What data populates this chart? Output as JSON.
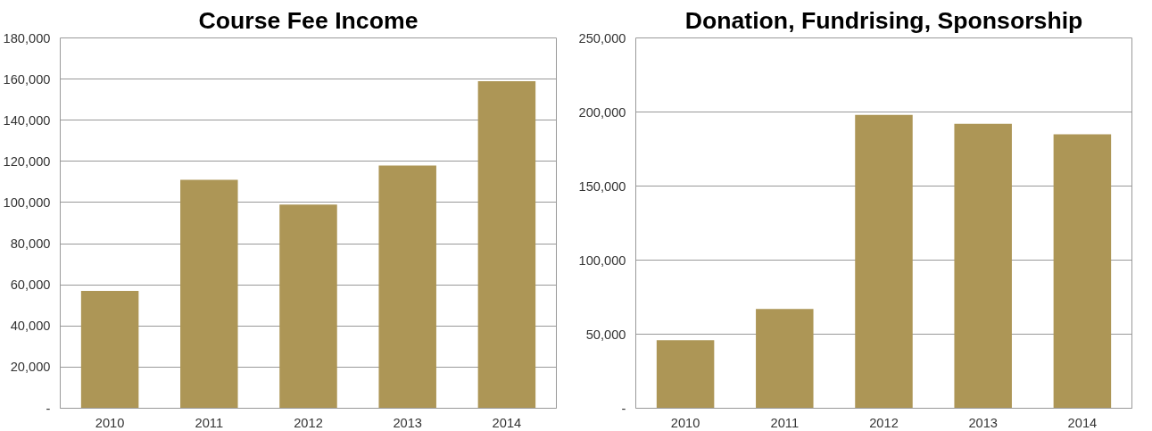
{
  "chart_data": [
    {
      "type": "bar",
      "title": "Course Fee Income",
      "categories": [
        "2010",
        "2011",
        "2012",
        "2013",
        "2014"
      ],
      "values": [
        57000,
        111000,
        99000,
        118000,
        159000
      ],
      "color": "#ad9656",
      "ylim": [
        0,
        180000
      ],
      "yticks": [
        {
          "value": 0,
          "label": "-"
        },
        {
          "value": 20000,
          "label": "20,000"
        },
        {
          "value": 40000,
          "label": "40,000"
        },
        {
          "value": 60000,
          "label": "60,000"
        },
        {
          "value": 80000,
          "label": "80,000"
        },
        {
          "value": 100000,
          "label": "100,000"
        },
        {
          "value": 120000,
          "label": "120,000"
        },
        {
          "value": 140000,
          "label": "140,000"
        },
        {
          "value": 160000,
          "label": "160,000"
        },
        {
          "value": 180000,
          "label": "180,000"
        }
      ],
      "grid": "y"
    },
    {
      "type": "bar",
      "title": "Donation, Fundrising, Sponsorship",
      "categories": [
        "2010",
        "2011",
        "2012",
        "2013",
        "2014"
      ],
      "values": [
        46000,
        67000,
        198000,
        192000,
        185000
      ],
      "color": "#ad9656",
      "ylim": [
        0,
        250000
      ],
      "yticks": [
        {
          "value": 0,
          "label": "-"
        },
        {
          "value": 50000,
          "label": "50,000"
        },
        {
          "value": 100000,
          "label": "100,000"
        },
        {
          "value": 150000,
          "label": "150,000"
        },
        {
          "value": 200000,
          "label": "200,000"
        },
        {
          "value": 250000,
          "label": "250,000"
        }
      ],
      "grid": "y"
    }
  ]
}
